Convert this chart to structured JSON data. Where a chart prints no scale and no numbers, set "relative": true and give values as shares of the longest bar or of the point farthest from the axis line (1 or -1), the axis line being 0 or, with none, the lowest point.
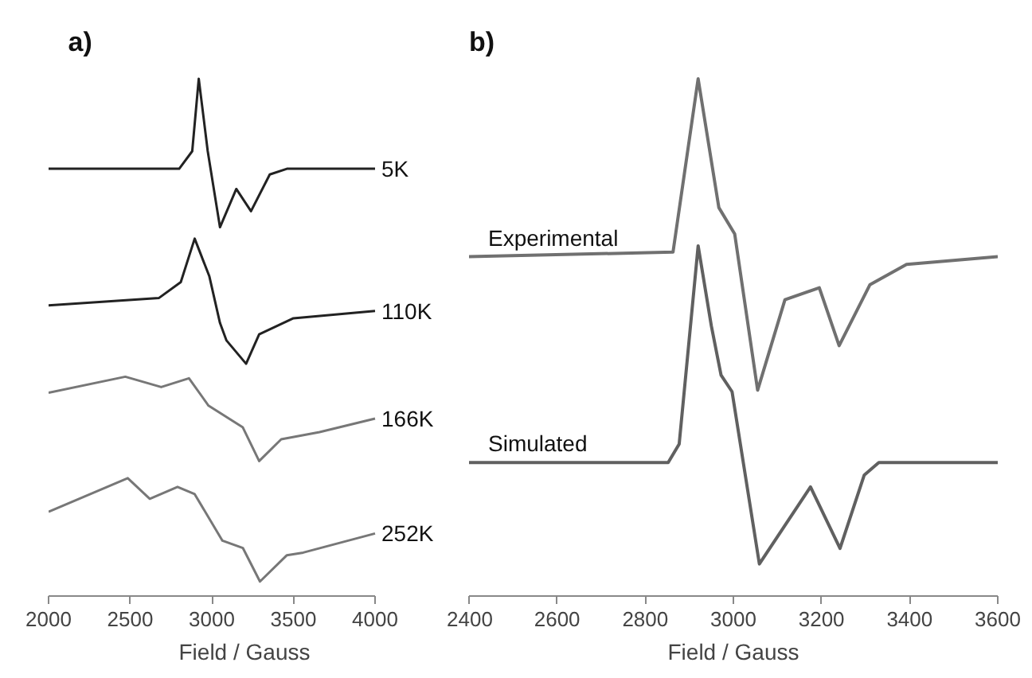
{
  "chart_data": [
    {
      "type": "line",
      "title": "a)",
      "xlabel": "Field / Gauss",
      "relative": true,
      "xlim": [
        2000,
        4000
      ],
      "xticks": [
        2000,
        2500,
        3000,
        3500,
        4000
      ],
      "tick_labels": "x",
      "grid": false,
      "legend": false,
      "line_style": "solid",
      "marker": "none",
      "series": [
        {
          "name": "5K",
          "color": "#222222",
          "x": [
            2000,
            2800,
            2880,
            2920,
            2975,
            3050,
            3150,
            3240,
            3355,
            3460,
            4000
          ],
          "values": [
            0.826,
            0.826,
            0.86,
            1.0,
            0.86,
            0.713,
            0.787,
            0.744,
            0.815,
            0.826,
            0.826
          ]
        },
        {
          "name": "110K",
          "color": "#222222",
          "x": [
            2000,
            2675,
            2810,
            2895,
            2985,
            3050,
            3090,
            3210,
            3290,
            3500,
            4000
          ],
          "values": [
            0.562,
            0.576,
            0.607,
            0.691,
            0.618,
            0.528,
            0.494,
            0.449,
            0.506,
            0.537,
            0.551
          ]
        },
        {
          "name": "166K",
          "color": "#777777",
          "x": [
            2000,
            2470,
            2690,
            2860,
            2980,
            3190,
            3290,
            3425,
            3660,
            4000
          ],
          "values": [
            0.393,
            0.424,
            0.404,
            0.421,
            0.368,
            0.326,
            0.261,
            0.303,
            0.317,
            0.343
          ]
        },
        {
          "name": "252K",
          "color": "#777777",
          "x": [
            2000,
            2485,
            2620,
            2790,
            2895,
            3065,
            3190,
            3295,
            3460,
            3560,
            4000
          ],
          "values": [
            0.163,
            0.228,
            0.188,
            0.211,
            0.197,
            0.107,
            0.093,
            0.028,
            0.079,
            0.084,
            0.121
          ]
        }
      ]
    },
    {
      "type": "line",
      "title": "b)",
      "xlabel": "Field / Gauss",
      "relative": true,
      "xlim": [
        2400,
        3600
      ],
      "xticks": [
        2400,
        2600,
        2800,
        3000,
        3200,
        3400,
        3600
      ],
      "tick_labels": "x",
      "grid": false,
      "legend": false,
      "line_style": "solid",
      "marker": "none",
      "series": [
        {
          "name": "Experimental",
          "color": "#707070",
          "x": [
            2400,
            2863,
            2920,
            2967,
            3003,
            3055,
            3117,
            3195,
            3240,
            3310,
            3393,
            3600
          ],
          "values": [
            0.656,
            0.665,
            1.0,
            0.751,
            0.7,
            0.398,
            0.573,
            0.596,
            0.484,
            0.602,
            0.641,
            0.656
          ]
        },
        {
          "name": "Simulated",
          "color": "#606060",
          "x": [
            2400,
            2852,
            2877,
            2920,
            2950,
            2972,
            2997,
            3059,
            3175,
            3242,
            3297,
            3330,
            3600
          ],
          "values": [
            0.258,
            0.258,
            0.294,
            0.677,
            0.522,
            0.427,
            0.395,
            0.062,
            0.211,
            0.092,
            0.234,
            0.258,
            0.258
          ]
        }
      ]
    }
  ]
}
